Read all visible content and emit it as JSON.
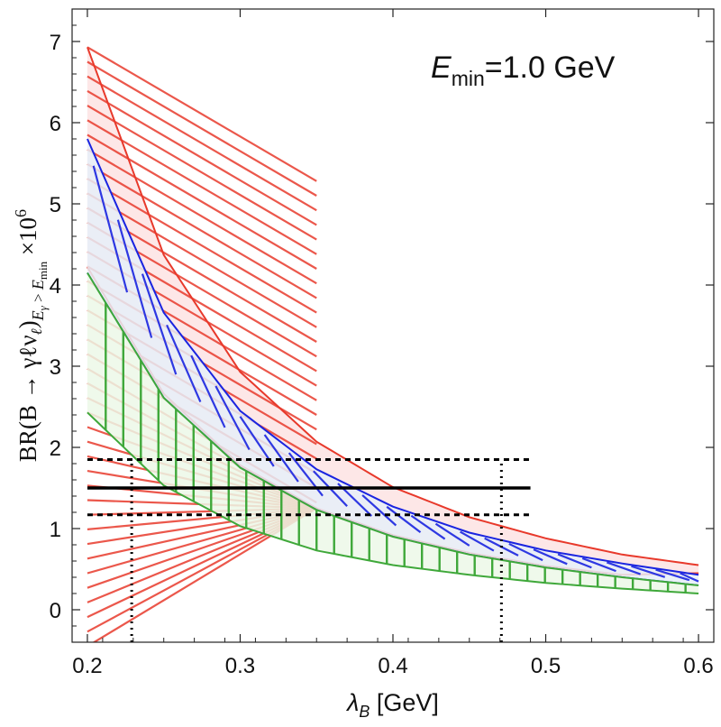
{
  "chart_data": {
    "type": "area",
    "xlabel": {
      "symbol": "λ",
      "sub": "B",
      "unit": " [GeV]"
    },
    "ylabel": {
      "pre": "BR(B → γℓν",
      "nu_sub": "ℓ",
      "post": ")",
      "sub": "E",
      "subsub": "γ",
      "gt": " > ",
      "sub2": "E",
      "subsub2": "min",
      "post2": " ×10",
      "exp": "6"
    },
    "annotation": {
      "main": "E",
      "sub": "min",
      "rest": "=1.0 GeV"
    },
    "xlim": [
      0.19,
      0.61
    ],
    "ylim": [
      -0.4,
      7.4
    ],
    "xticks": [
      0.2,
      0.3,
      0.4,
      0.5,
      0.6
    ],
    "xtick_labels": [
      "0.2",
      "0.3",
      "0.4",
      "0.5",
      "0.6"
    ],
    "yticks": [
      0,
      1,
      2,
      3,
      4,
      5,
      6,
      7
    ],
    "ytick_labels": [
      "0",
      "1",
      "2",
      "3",
      "4",
      "5",
      "6",
      "7"
    ],
    "bands": [
      {
        "color": "#e8392b",
        "fill": "#fde3e3",
        "hatch": "slanted",
        "x": [
          0.2,
          0.25,
          0.3,
          0.35,
          0.4,
          0.45,
          0.5,
          0.55,
          0.6
        ],
        "upper": [
          6.93,
          4.37,
          2.93,
          2.07,
          1.51,
          1.14,
          0.88,
          0.68,
          0.55
        ],
        "lower": [
          4.22,
          2.66,
          1.78,
          1.25,
          0.92,
          0.7,
          0.54,
          0.43,
          0.45
        ]
      },
      {
        "color": "#1a24e0",
        "fill": "#e6eef8",
        "hatch": "chevron",
        "x": [
          0.2,
          0.25,
          0.3,
          0.35,
          0.4,
          0.45,
          0.5,
          0.55,
          0.6
        ],
        "upper": [
          5.8,
          3.66,
          2.45,
          1.73,
          1.27,
          0.95,
          0.73,
          0.57,
          0.43
        ],
        "lower": [
          4.15,
          2.61,
          1.75,
          1.23,
          0.9,
          0.68,
          0.52,
          0.4,
          0.3
        ]
      },
      {
        "color": "#3fa83a",
        "fill": "#ecf8e7",
        "hatch": "vertical",
        "x": [
          0.2,
          0.25,
          0.3,
          0.35,
          0.4,
          0.45,
          0.5,
          0.55,
          0.6
        ],
        "upper": [
          4.15,
          2.61,
          1.75,
          1.23,
          0.9,
          0.68,
          0.52,
          0.4,
          0.3
        ],
        "lower": [
          2.43,
          1.53,
          1.03,
          0.73,
          0.55,
          0.43,
          0.33,
          0.26,
          0.2
        ]
      }
    ],
    "hlines": [
      {
        "y": 1.5,
        "x": [
          0.2,
          0.49
        ],
        "style": "solid"
      },
      {
        "y": 1.85,
        "x": [
          0.2,
          0.49
        ],
        "style": "dashed"
      },
      {
        "y": 1.17,
        "x": [
          0.2,
          0.49
        ],
        "style": "dashed"
      }
    ],
    "vlines": [
      {
        "x": 0.229,
        "y": [
          -0.4,
          1.85
        ],
        "style": "dotted"
      },
      {
        "x": 0.471,
        "y": [
          -0.4,
          1.85
        ],
        "style": "dotted"
      }
    ],
    "grid": false
  }
}
